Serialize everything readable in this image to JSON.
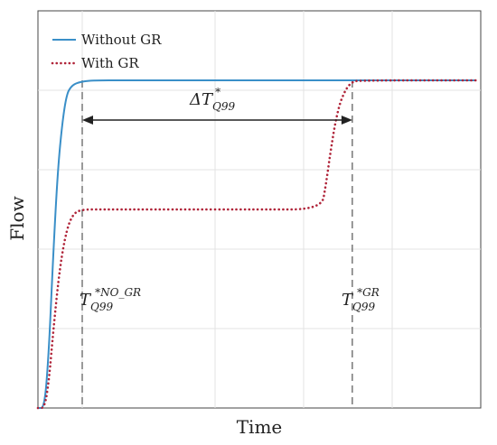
{
  "chart_data": {
    "type": "line",
    "title": "",
    "xlabel": "Time",
    "ylabel": "Flow",
    "xlim": [
      0,
      1
    ],
    "ylim": [
      0,
      1
    ],
    "grid": true,
    "legend_position": "top-left",
    "x_ticks": [
      0.1,
      0.4,
      0.6,
      0.8
    ],
    "y_ticks": [
      0.2,
      0.4,
      0.6,
      0.8
    ],
    "series": [
      {
        "name": "Without GR",
        "style": "solid",
        "color": "#3a8fc8",
        "x": [
          0,
          0.015,
          0.025,
          0.035,
          0.045,
          0.055,
          0.065,
          0.075,
          0.09,
          0.12,
          0.2,
          0.4,
          0.6,
          0.7,
          0.82,
          0.99
        ],
        "y": [
          0,
          0,
          0.15,
          0.4,
          0.6,
          0.72,
          0.79,
          0.81,
          0.82,
          0.825,
          0.825,
          0.825,
          0.825,
          0.825,
          0.825,
          0.825
        ]
      },
      {
        "name": "With GR",
        "style": "dotted",
        "color": "#b0253a",
        "x": [
          0,
          0.015,
          0.025,
          0.035,
          0.05,
          0.065,
          0.08,
          0.1,
          0.15,
          0.3,
          0.5,
          0.64,
          0.65,
          0.66,
          0.67,
          0.68,
          0.69,
          0.7,
          0.71,
          0.72,
          0.99
        ],
        "y": [
          0,
          0,
          0.07,
          0.2,
          0.36,
          0.45,
          0.49,
          0.5,
          0.5,
          0.5,
          0.5,
          0.5,
          0.56,
          0.64,
          0.71,
          0.76,
          0.79,
          0.81,
          0.82,
          0.825,
          0.825
        ]
      }
    ],
    "markers": [
      {
        "x": 0.1,
        "label_main": "T",
        "label_sub": "Q99",
        "label_sup": "*NO_GR"
      },
      {
        "x": 0.71,
        "label_main": "T",
        "label_sub": "Q99",
        "label_sup": "*GR"
      }
    ],
    "delta_label": {
      "prefix": "ΔT",
      "sub": "Q99",
      "sup": "*"
    }
  }
}
